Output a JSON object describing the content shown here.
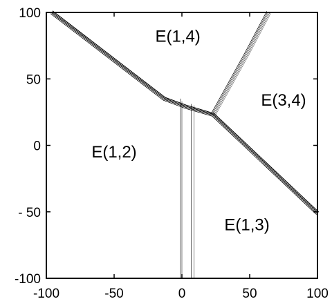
{
  "chart_data": {
    "type": "line",
    "title": "",
    "xlabel": "",
    "ylabel": "",
    "xlim": [
      -100,
      100
    ],
    "ylim": [
      -100,
      100
    ],
    "x_ticks": [
      -100,
      -50,
      0,
      50,
      100
    ],
    "y_ticks": [
      -100,
      -50,
      0,
      50,
      100
    ],
    "x_tick_labels": [
      "-100",
      "-50",
      "0",
      "50",
      "100"
    ],
    "y_tick_labels": [
      "-100",
      "- 50",
      "0",
      "50",
      "100"
    ],
    "grid": false,
    "region_labels": [
      {
        "text": "E(1,4)",
        "x": -3,
        "y": 78
      },
      {
        "text": "E(3,4)",
        "x": 75,
        "y": 30
      },
      {
        "text": "E(1,2)",
        "x": -50,
        "y": -9
      },
      {
        "text": "E(1,3)",
        "x": 48,
        "y": -64
      }
    ],
    "series": [
      {
        "points": [
          [
            -96,
            100
          ],
          [
            -13,
            35
          ],
          [
            3,
            29
          ],
          [
            23,
            23
          ],
          [
            100,
            -51
          ]
        ],
        "widths": [
          1.1,
          1.0,
          0.9,
          0.8
        ]
      },
      {
        "points": [
          [
            23,
            23
          ],
          [
            48,
            69
          ],
          [
            64,
            100
          ]
        ],
        "widths": [
          0.7,
          0.6,
          0.5,
          0.5,
          0.4
        ]
      },
      {
        "points": [
          [
            -1,
            35
          ],
          [
            -1,
            -100
          ]
        ],
        "widths": [
          0.6
        ]
      },
      {
        "points": [
          [
            0,
            33
          ],
          [
            0,
            -100
          ]
        ],
        "widths": [
          0.5
        ]
      },
      {
        "points": [
          [
            7,
            31
          ],
          [
            7,
            -100
          ]
        ],
        "widths": [
          0.6
        ]
      },
      {
        "points": [
          [
            9,
            30
          ],
          [
            9,
            -100
          ]
        ],
        "widths": [
          0.5
        ]
      }
    ]
  }
}
